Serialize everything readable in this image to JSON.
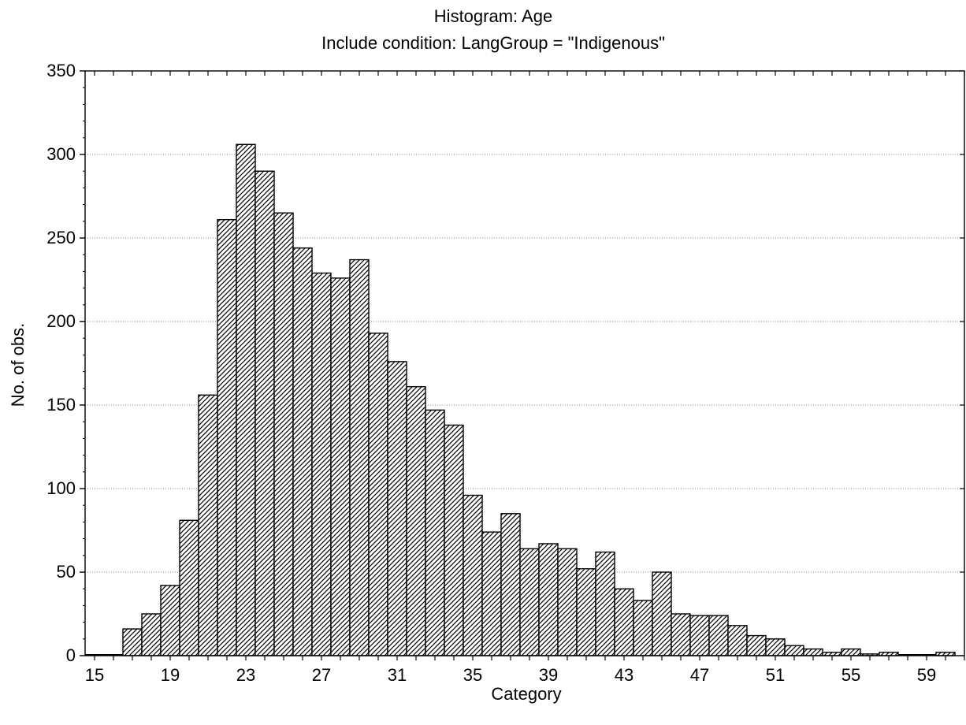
{
  "chart_data": {
    "type": "bar",
    "title": "Histogram: Age",
    "subtitle": "Include condition: LangGroup = \"Indigenous\"",
    "xlabel": "Category",
    "ylabel": "No. of obs.",
    "xlim": [
      14.5,
      61
    ],
    "ylim": [
      0,
      350
    ],
    "x_ticks": [
      15,
      19,
      23,
      27,
      31,
      35,
      39,
      43,
      47,
      51,
      55,
      59
    ],
    "y_ticks": [
      0,
      50,
      100,
      150,
      200,
      250,
      300,
      350
    ],
    "grid": true,
    "categories": [
      15,
      16,
      17,
      18,
      19,
      20,
      21,
      22,
      23,
      24,
      25,
      26,
      27,
      28,
      29,
      30,
      31,
      32,
      33,
      34,
      35,
      36,
      37,
      38,
      39,
      40,
      41,
      42,
      43,
      44,
      45,
      46,
      47,
      48,
      49,
      50,
      51,
      52,
      53,
      54,
      55,
      56,
      57,
      58,
      59,
      60
    ],
    "values": [
      0,
      0,
      16,
      25,
      42,
      81,
      156,
      261,
      306,
      290,
      265,
      244,
      229,
      226,
      237,
      193,
      176,
      161,
      147,
      138,
      96,
      74,
      85,
      64,
      67,
      64,
      52,
      62,
      40,
      33,
      50,
      25,
      24,
      24,
      18,
      12,
      10,
      6,
      4,
      2,
      4,
      1,
      2,
      0,
      0,
      2
    ],
    "bar_fill": "hatched",
    "bar_stroke": "#000000"
  }
}
